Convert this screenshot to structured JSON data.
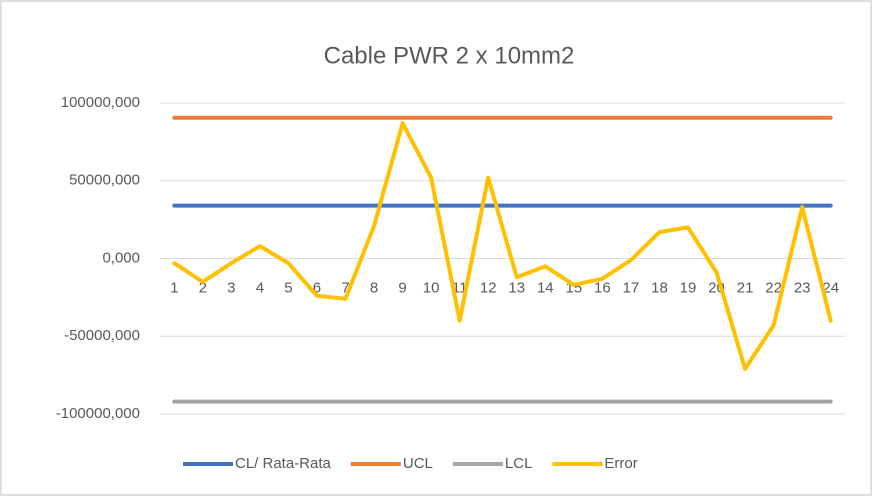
{
  "chart_data": {
    "type": "line",
    "title": "Cable PWR 2 x 10mm2",
    "categories": [
      "1",
      "2",
      "3",
      "4",
      "5",
      "6",
      "7",
      "8",
      "9",
      "10",
      "11",
      "12",
      "13",
      "14",
      "15",
      "16",
      "17",
      "18",
      "19",
      "20",
      "21",
      "22",
      "23",
      "24"
    ],
    "series": [
      {
        "name": "CL/ Rata-Rata",
        "color": "#4472c4",
        "values": [
          34000,
          34000,
          34000,
          34000,
          34000,
          34000,
          34000,
          34000,
          34000,
          34000,
          34000,
          34000,
          34000,
          34000,
          34000,
          34000,
          34000,
          34000,
          34000,
          34000,
          34000,
          34000,
          34000,
          34000
        ]
      },
      {
        "name": "UCL",
        "color": "#ed7d31",
        "values": [
          90500,
          90500,
          90500,
          90500,
          90500,
          90500,
          90500,
          90500,
          90500,
          90500,
          90500,
          90500,
          90500,
          90500,
          90500,
          90500,
          90500,
          90500,
          90500,
          90500,
          90500,
          90500,
          90500,
          90500
        ]
      },
      {
        "name": "LCL",
        "color": "#a5a5a5",
        "values": [
          -92000,
          -92000,
          -92000,
          -92000,
          -92000,
          -92000,
          -92000,
          -92000,
          -92000,
          -92000,
          -92000,
          -92000,
          -92000,
          -92000,
          -92000,
          -92000,
          -92000,
          -92000,
          -92000,
          -92000,
          -92000,
          -92000,
          -92000,
          -92000
        ]
      },
      {
        "name": "Error",
        "color": "#ffc000",
        "values": [
          -3000,
          -15000,
          -3000,
          8000,
          -3000,
          -24000,
          -26000,
          21000,
          87000,
          52000,
          -40000,
          52000,
          -12000,
          -5000,
          -17000,
          -13000,
          -1000,
          17000,
          20000,
          -9000,
          -71000,
          -43000,
          33000,
          -40000
        ]
      }
    ],
    "ylim": [
      -100000,
      100000
    ],
    "yticks": [
      {
        "value": -100000,
        "label": "-100000,000"
      },
      {
        "value": -50000,
        "label": "-50000,000"
      },
      {
        "value": 0,
        "label": "0,000"
      },
      {
        "value": 50000,
        "label": "50000,000"
      },
      {
        "value": 100000,
        "label": "100000,000"
      }
    ],
    "grid": true,
    "legend": "bottom"
  }
}
